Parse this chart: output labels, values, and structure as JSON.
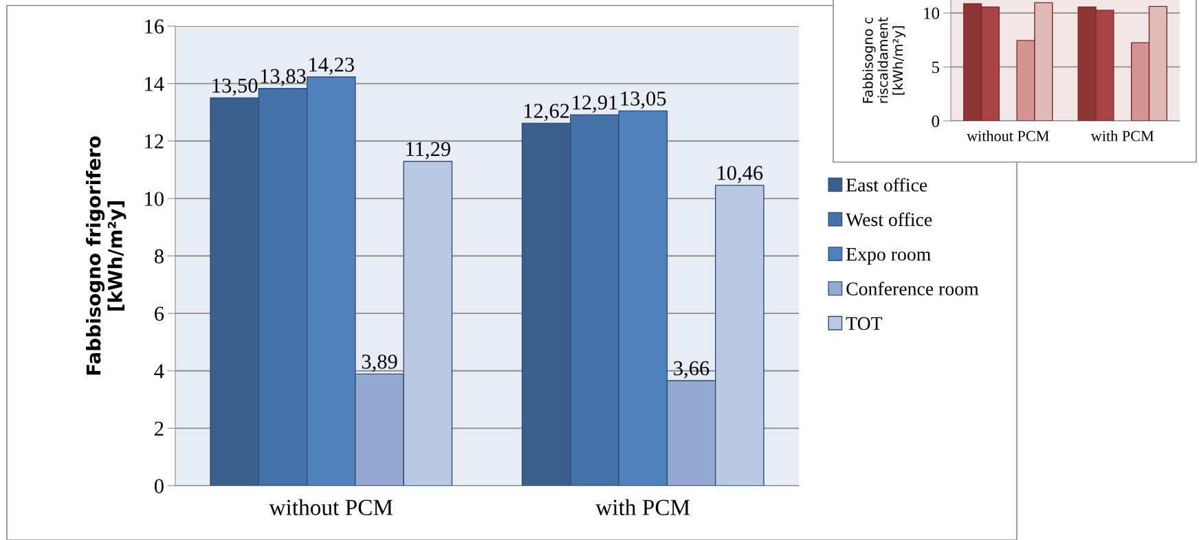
{
  "chart_data": [
    {
      "type": "bar",
      "ylabel": "Fabbisogno frigorifero\n[kWh/m²y]",
      "categories": [
        "without PCM",
        "with PCM"
      ],
      "series": [
        {
          "name": "East office",
          "color": "#3a5f8d",
          "values": [
            13.5,
            12.62
          ],
          "value_labels": [
            "13,50",
            "12,62"
          ]
        },
        {
          "name": "West office",
          "color": "#4472a8",
          "values": [
            13.83,
            12.91
          ],
          "value_labels": [
            "13,83",
            "12,91"
          ]
        },
        {
          "name": "Expo room",
          "color": "#4f81bd",
          "values": [
            14.23,
            13.05
          ],
          "value_labels": [
            "14,23",
            "13,05"
          ]
        },
        {
          "name": "Conference room",
          "color": "#95a9d0",
          "values": [
            3.89,
            3.66
          ],
          "value_labels": [
            "3,89",
            "3,66"
          ]
        },
        {
          "name": "TOT",
          "color": "#bac8e2",
          "values": [
            11.29,
            10.46
          ],
          "value_labels": [
            "11,29",
            "10,46"
          ]
        }
      ],
      "ylim": [
        0,
        16
      ],
      "yticks": [
        0,
        2,
        4,
        6,
        8,
        10,
        12,
        14,
        16
      ],
      "grid": "y",
      "legend": "right"
    },
    {
      "type": "bar",
      "ylabel": "Fabbisogno c\nriscaldament\n[kWh/m²y]",
      "categories": [
        "without PCM",
        "with PCM"
      ],
      "series": [
        {
          "color": "#8e3636",
          "values": [
            10.85,
            10.55
          ]
        },
        {
          "color": "#a84444",
          "values": [
            10.55,
            10.25
          ]
        },
        {
          "color": "#c0504d",
          "values": [
            null,
            null
          ]
        },
        {
          "color": "#d39494",
          "values": [
            7.45,
            7.25
          ]
        },
        {
          "color": "#e0b9b9",
          "values": [
            10.95,
            10.6
          ]
        }
      ],
      "ylim": [
        0,
        11.2
      ],
      "yticks": [
        0,
        5,
        10
      ],
      "grid": "y"
    }
  ]
}
